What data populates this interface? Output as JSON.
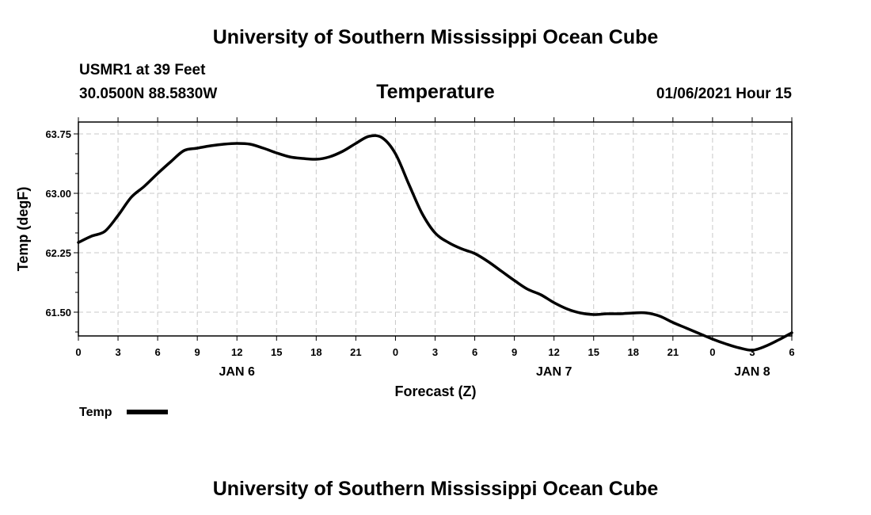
{
  "header": {
    "title": "University of Southern Mississippi Ocean Cube",
    "station": "USMR1 at 39 Feet",
    "location": "30.0500N 88.5830W",
    "parameter": "Temperature",
    "datetime": "01/06/2021 Hour 15"
  },
  "footer": {
    "title": "University of Southern Mississippi Ocean Cube"
  },
  "chart_data": {
    "type": "line",
    "title": "Temperature",
    "xlabel": "Forecast (Z)",
    "ylabel": "Temp (degF)",
    "xlim": [
      0,
      54
    ],
    "ylim": [
      61.2,
      63.9
    ],
    "y_ticks": [
      "63.75",
      "63.00",
      "62.25",
      "61.50"
    ],
    "y_tick_values": [
      63.75,
      63.0,
      62.25,
      61.5
    ],
    "x_tick_labels": [
      "0",
      "3",
      "6",
      "9",
      "12",
      "15",
      "18",
      "21",
      "0",
      "3",
      "6",
      "9",
      "12",
      "15",
      "18",
      "21",
      "0",
      "3",
      "6"
    ],
    "day_labels": [
      {
        "label": "JAN 6",
        "hour": 12
      },
      {
        "label": "JAN 7",
        "hour": 36
      },
      {
        "label": "JAN 8",
        "hour": 51
      }
    ],
    "grid": true,
    "legend": {
      "label": "Temp",
      "placement": "bottom-left",
      "color": "#000000"
    },
    "series": [
      {
        "name": "Temp",
        "color": "#000000",
        "x": [
          0,
          1,
          2,
          3,
          4,
          5,
          6,
          7,
          8,
          9,
          10,
          11,
          12,
          13,
          14,
          15,
          16,
          17,
          18,
          19,
          20,
          21,
          22,
          23,
          24,
          25,
          26,
          27,
          28,
          29,
          30,
          31,
          32,
          33,
          34,
          35,
          36,
          37,
          38,
          39,
          40,
          41,
          42,
          43,
          44,
          45,
          46,
          47,
          48,
          49,
          50,
          51,
          52,
          53,
          54
        ],
        "values": [
          62.38,
          62.46,
          62.52,
          62.72,
          62.95,
          63.09,
          63.25,
          63.4,
          63.54,
          63.57,
          63.6,
          63.62,
          63.63,
          63.62,
          63.57,
          63.51,
          63.46,
          63.44,
          63.43,
          63.46,
          63.53,
          63.63,
          63.72,
          63.7,
          63.5,
          63.12,
          62.75,
          62.5,
          62.38,
          62.3,
          62.24,
          62.14,
          62.02,
          61.9,
          61.79,
          61.72,
          61.62,
          61.54,
          61.49,
          61.47,
          61.48,
          61.48,
          61.49,
          61.49,
          61.45,
          61.37,
          61.3,
          61.23,
          61.16,
          61.1,
          61.05,
          61.02,
          61.07,
          61.15,
          61.24
        ]
      }
    ]
  }
}
